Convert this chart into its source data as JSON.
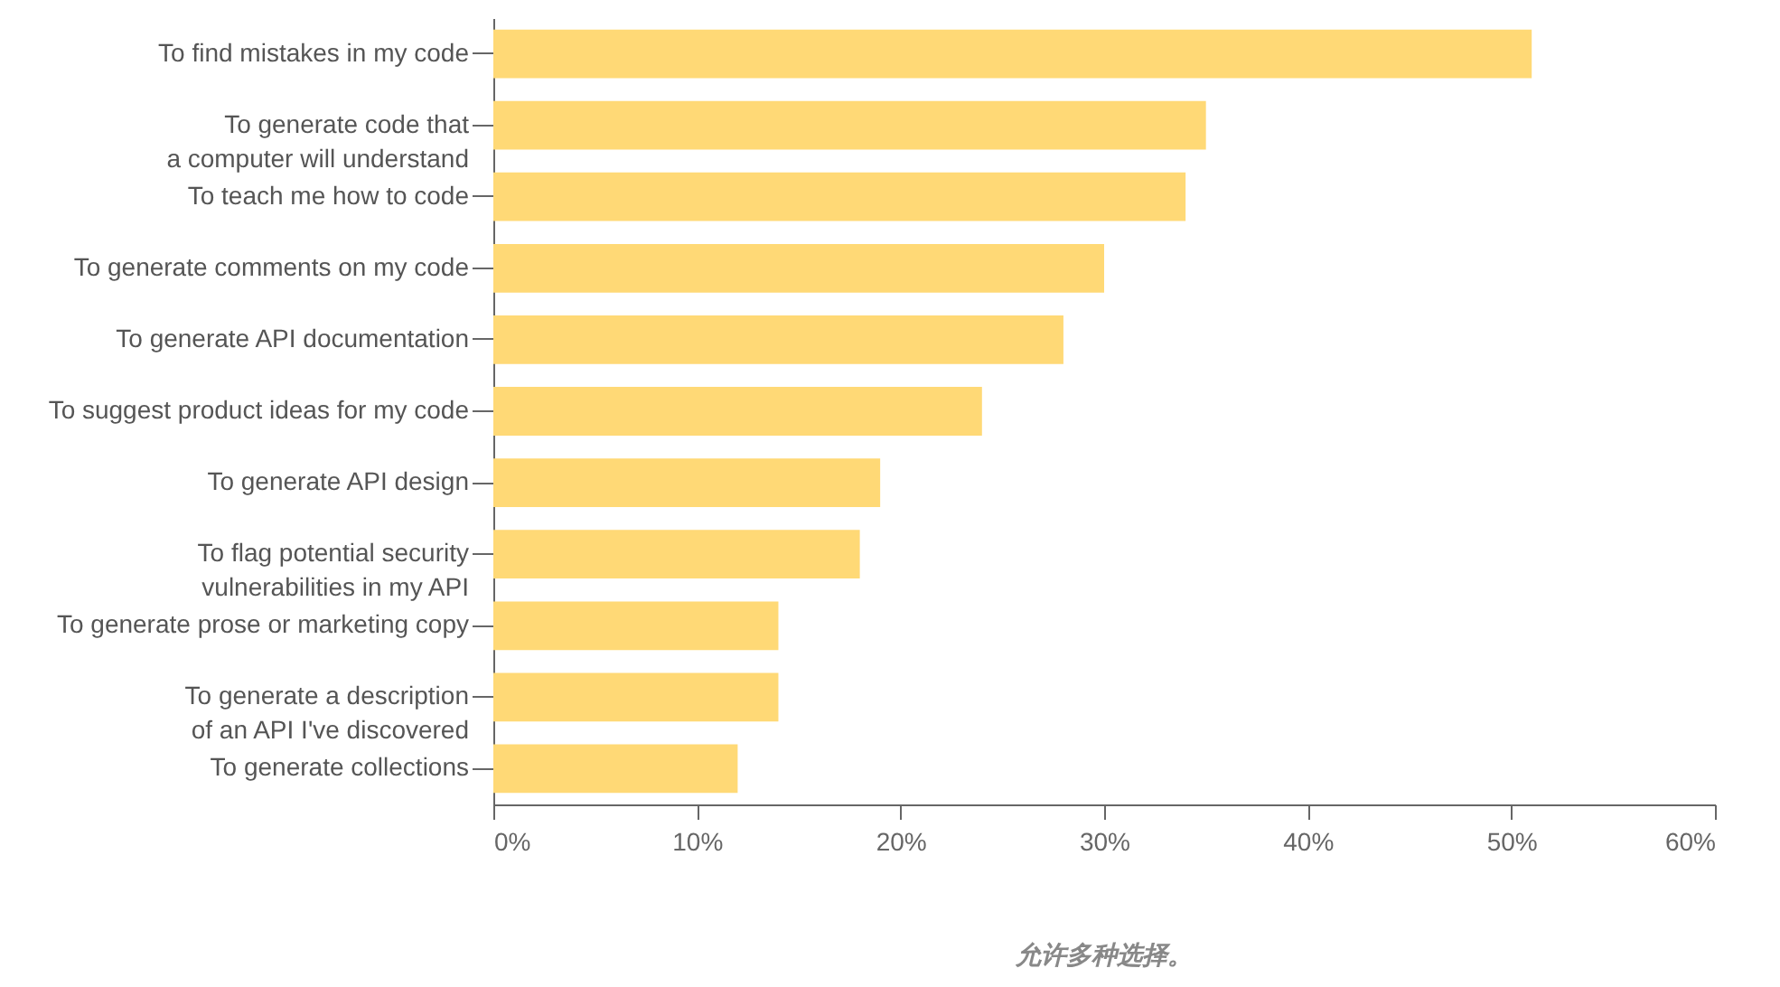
{
  "chart_data": {
    "type": "bar",
    "orientation": "horizontal",
    "categories": [
      "To find mistakes in my code",
      "To generate code that\na computer will understand",
      "To teach me how to code",
      "To generate comments on my code",
      "To generate API documentation",
      "To suggest product ideas for my code",
      "To generate API design",
      "To flag potential security\nvulnerabilities in my API",
      "To generate prose or marketing copy",
      "To generate a description\nof an API I've discovered",
      "To generate collections"
    ],
    "values": [
      51,
      35,
      34,
      30,
      28,
      24,
      19,
      18,
      14,
      14,
      12
    ],
    "color": "#ffd976",
    "xlim": [
      0,
      60
    ],
    "xticks": [
      {
        "value": 0,
        "label": "0%"
      },
      {
        "value": 10,
        "label": "10%"
      },
      {
        "value": 20,
        "label": "20%"
      },
      {
        "value": 30,
        "label": "30%"
      },
      {
        "value": 40,
        "label": "40%"
      },
      {
        "value": 50,
        "label": "50%"
      },
      {
        "value": 60,
        "label": "60%"
      }
    ],
    "grid": false,
    "annotations": [
      "允许多种选择。"
    ]
  }
}
